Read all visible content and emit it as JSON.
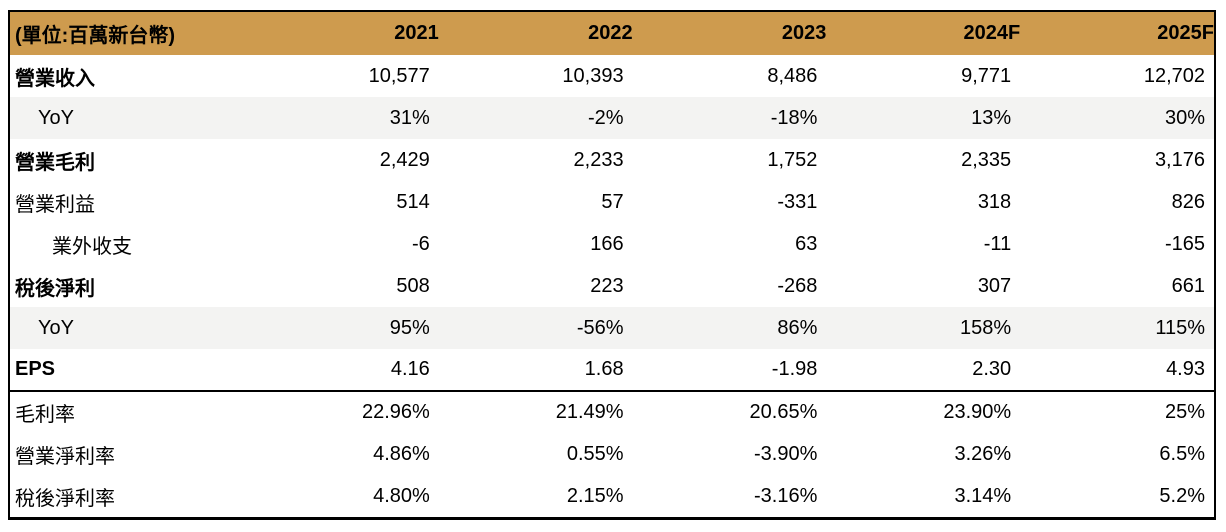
{
  "table": {
    "unit_label": "(單位:百萬新台幣)",
    "columns": [
      "2021",
      "2022",
      "2023",
      "2024F",
      "2025F"
    ],
    "colors": {
      "header_bg": "#CE9B4E",
      "header_text": "#FFFFFF",
      "stripe_bg": "#F3F3F2",
      "border": "#000000"
    },
    "rows": [
      {
        "label": "營業收入",
        "values": [
          "10,577",
          "10,393",
          "8,486",
          "9,771",
          "12,702"
        ]
      },
      {
        "label": "YoY",
        "values": [
          "31%",
          "-2%",
          "-18%",
          "13%",
          "30%"
        ]
      },
      {
        "label": "營業毛利",
        "values": [
          "2,429",
          "2,233",
          "1,752",
          "2,335",
          "3,176"
        ]
      },
      {
        "label": "營業利益",
        "values": [
          "514",
          "57",
          "-331",
          "318",
          "826"
        ]
      },
      {
        "label": "業外收支",
        "values": [
          "-6",
          "166",
          "63",
          "-11",
          "-165"
        ]
      },
      {
        "label": "稅後淨利",
        "values": [
          "508",
          "223",
          "-268",
          "307",
          "661"
        ]
      },
      {
        "label": "YoY",
        "values": [
          "95%",
          "-56%",
          "86%",
          "158%",
          "115%"
        ]
      },
      {
        "label": "EPS",
        "values": [
          "4.16",
          "1.68",
          "-1.98",
          "2.30",
          "4.93"
        ]
      },
      {
        "label": "毛利率",
        "values": [
          "22.96%",
          "21.49%",
          "20.65%",
          "23.90%",
          "25%"
        ]
      },
      {
        "label": "營業淨利率",
        "values": [
          "4.86%",
          "0.55%",
          "-3.90%",
          "3.26%",
          "6.5%"
        ]
      },
      {
        "label": "稅後淨利率",
        "values": [
          "4.80%",
          "2.15%",
          "-3.16%",
          "3.14%",
          "5.2%"
        ]
      }
    ]
  },
  "chart_data": {
    "type": "table",
    "title": "(單位:百萬新台幣)",
    "categories": [
      "2021",
      "2022",
      "2023",
      "2024F",
      "2025F"
    ],
    "series": [
      {
        "name": "營業收入",
        "values": [
          10577,
          10393,
          8486,
          9771,
          12702
        ]
      },
      {
        "name": "營業收入 YoY (%)",
        "values": [
          31,
          -2,
          -18,
          13,
          30
        ]
      },
      {
        "name": "營業毛利",
        "values": [
          2429,
          2233,
          1752,
          2335,
          3176
        ]
      },
      {
        "name": "營業利益",
        "values": [
          514,
          57,
          -331,
          318,
          826
        ]
      },
      {
        "name": "業外收支",
        "values": [
          -6,
          166,
          63,
          -11,
          -165
        ]
      },
      {
        "name": "稅後淨利",
        "values": [
          508,
          223,
          -268,
          307,
          661
        ]
      },
      {
        "name": "稅後淨利 YoY (%)",
        "values": [
          95,
          -56,
          86,
          158,
          115
        ]
      },
      {
        "name": "EPS",
        "values": [
          4.16,
          1.68,
          -1.98,
          2.3,
          4.93
        ]
      },
      {
        "name": "毛利率 (%)",
        "values": [
          22.96,
          21.49,
          20.65,
          23.9,
          25
        ]
      },
      {
        "name": "營業淨利率 (%)",
        "values": [
          4.86,
          0.55,
          -3.9,
          3.26,
          6.5
        ]
      },
      {
        "name": "稅後淨利率 (%)",
        "values": [
          4.8,
          2.15,
          -3.16,
          3.14,
          5.2
        ]
      }
    ]
  }
}
